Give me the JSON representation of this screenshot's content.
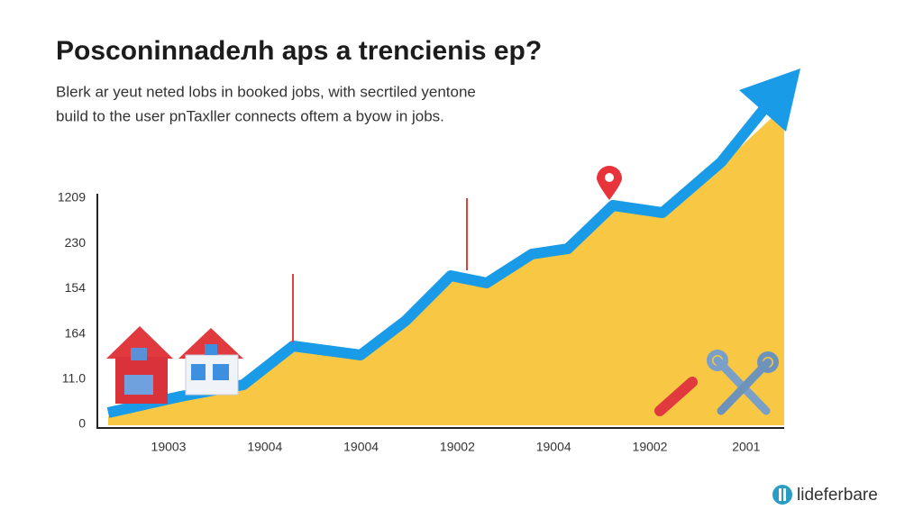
{
  "header": {
    "title": "Posconinnadeлh aps a trencienis ep?",
    "subtitle": [
      "Blerk ar yeut neted lobs in booked jobs, with secrtiled yentone",
      "build to the user pnTaxller connects oftem a byow in jobs."
    ]
  },
  "illustration": {
    "y_labels": [
      "1209",
      "230",
      "154",
      "164",
      "11.0",
      "0"
    ],
    "x_labels": [
      "19003",
      "19004",
      "19004",
      "19002",
      "19004",
      "19002",
      "2001"
    ]
  },
  "logo": {
    "text": "lideferbare"
  }
}
